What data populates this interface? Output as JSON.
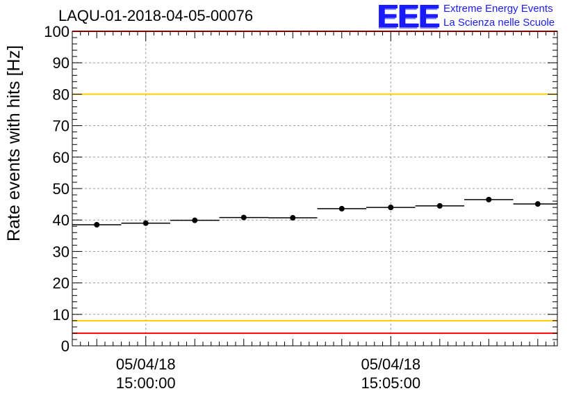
{
  "header": {
    "run_title": "LAQU-01-2018-04-05-00076",
    "logo_letters": "EEE",
    "logo_line1": "Extreme Energy Events",
    "logo_line2": "La Scienza nelle Scuole"
  },
  "colors": {
    "axis": "#000000",
    "grid": "#9a9a9a",
    "points": "#000000",
    "threshold_red": "#ff0000",
    "threshold_yellow": "#ffcc00",
    "logo_blue": "#1a1aff"
  },
  "chart_data": {
    "type": "scatter",
    "title": "LAQU-01-2018-04-05-00076",
    "xlabel": "",
    "ylabel": "Rate events with hits [Hz]",
    "ylim": [
      0,
      100
    ],
    "xlim_minutes": [
      -1.5,
      8.4
    ],
    "grid": true,
    "yticks": [
      0,
      10,
      20,
      30,
      40,
      50,
      60,
      70,
      80,
      90,
      100
    ],
    "xticks": [
      {
        "minute": 0,
        "date": "05/04/18",
        "time": "15:00:00"
      },
      {
        "minute": 5,
        "date": "05/04/18",
        "time": "15:05:00"
      }
    ],
    "series": [
      {
        "name": "Rate events with hits",
        "bin_width_minutes": 1,
        "points": [
          {
            "x": -1.0,
            "y": 38.5
          },
          {
            "x": 0.0,
            "y": 39.0
          },
          {
            "x": 1.0,
            "y": 39.9
          },
          {
            "x": 2.0,
            "y": 40.8
          },
          {
            "x": 3.0,
            "y": 40.7
          },
          {
            "x": 4.0,
            "y": 43.6
          },
          {
            "x": 5.0,
            "y": 44.0
          },
          {
            "x": 6.0,
            "y": 44.5
          },
          {
            "x": 7.0,
            "y": 46.5
          },
          {
            "x": 8.0,
            "y": 45.1
          }
        ]
      }
    ],
    "reference_lines": [
      {
        "name": "upper-red",
        "y": 100,
        "color": "#ff0000"
      },
      {
        "name": "upper-yellow",
        "y": 80,
        "color": "#ffcc00"
      },
      {
        "name": "lower-yellow",
        "y": 8,
        "color": "#ffcc00"
      },
      {
        "name": "lower-red",
        "y": 4,
        "color": "#ff0000"
      }
    ]
  }
}
